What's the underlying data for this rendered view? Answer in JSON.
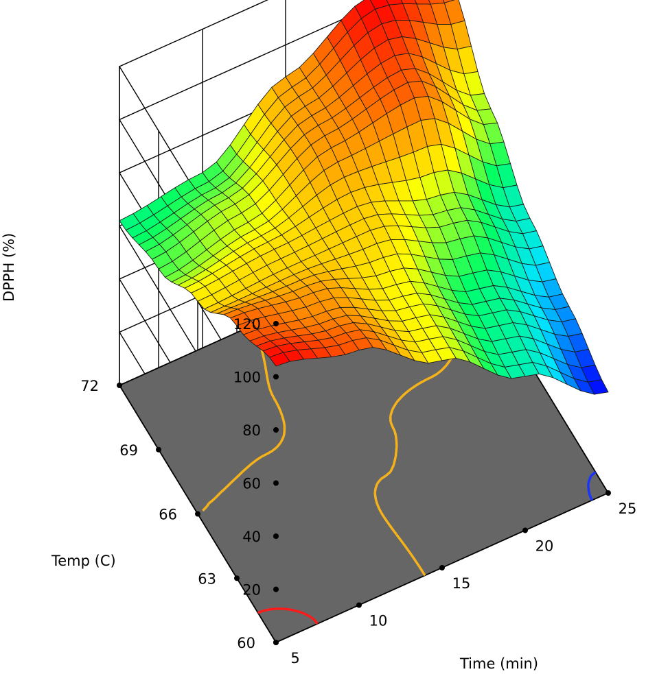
{
  "chart_data": {
    "type": "surface3d",
    "title": "",
    "xlabel": "Time (min)",
    "ylabel": "Temp (C)",
    "zlabel": "DPPH (%)",
    "xlim": [
      5,
      25
    ],
    "ylim": [
      60,
      72
    ],
    "zlim": [
      0,
      120
    ],
    "x_ticks": [
      "5",
      "10",
      "15",
      "20",
      "25"
    ],
    "y_ticks": [
      "60",
      "63",
      "66",
      "69",
      "72"
    ],
    "z_ticks": [
      "20",
      "40",
      "60",
      "80",
      "100",
      "120"
    ],
    "x": [
      5,
      10,
      15,
      20,
      25
    ],
    "y": [
      60,
      63,
      66,
      69,
      72
    ],
    "z": [
      [
        104,
        96,
        78,
        58,
        38
      ],
      [
        95,
        90,
        78,
        62,
        46
      ],
      [
        80,
        82,
        83,
        72,
        55
      ],
      [
        68,
        75,
        90,
        96,
        72
      ],
      [
        62,
        66,
        88,
        104,
        95
      ]
    ],
    "colorscale": [
      "#0000ff",
      "#00e5ff",
      "#00ff66",
      "#ffff00",
      "#ff8c00",
      "#ff0000"
    ],
    "floor_color": "#666666",
    "contours": [
      {
        "level": 80,
        "color": "#f6b21a"
      },
      {
        "level": 100,
        "color": "#ff1a1a"
      },
      {
        "level": 40,
        "color": "#1a33ff"
      }
    ]
  }
}
